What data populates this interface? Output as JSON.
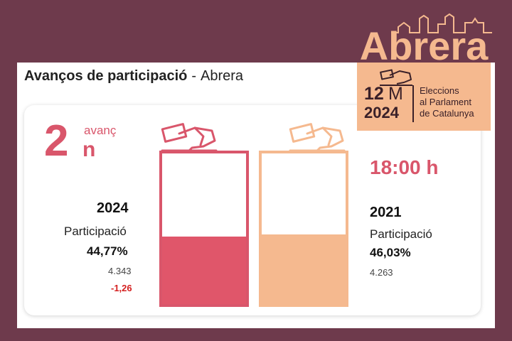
{
  "header": {
    "title_bold": "Avanços de participació",
    "separator": "-",
    "municipality": "Abrera"
  },
  "advance": {
    "number": "2",
    "superscript": "avanç",
    "suffix": "n",
    "time": "18:00 h"
  },
  "current": {
    "year": "2024",
    "label": "Participació",
    "percent": "44,77%",
    "percent_value": 44.77,
    "votes": "4.343",
    "difference": "-1,26"
  },
  "previous": {
    "year": "2021",
    "label": "Participació",
    "percent": "46,03%",
    "percent_value": 46.03,
    "votes": "4.263"
  },
  "logo": {
    "wordmark": "Abrera",
    "day": "12",
    "month": "M",
    "year": "2024",
    "line1": "Eleccions",
    "line2": "al Parlament",
    "line3": "de Catalunya"
  },
  "colors": {
    "background": "#6e3a4c",
    "accent_2024": "#e0566a",
    "accent_2021": "#f5b98f",
    "difference_negative": "#d42020"
  },
  "icons": {
    "ballot_hand_2024": "ballot-hand-icon",
    "ballot_hand_2021": "ballot-hand-icon",
    "logo_skyline": "skyline-icon"
  }
}
